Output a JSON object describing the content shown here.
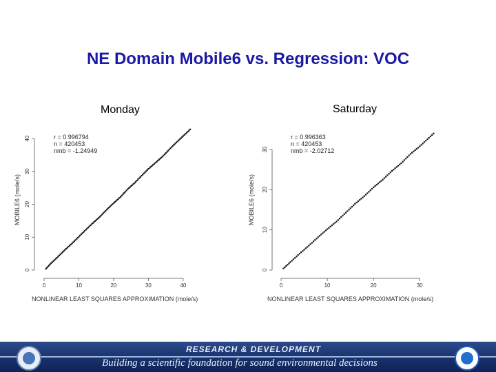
{
  "title": "NE Domain Mobile6 vs. Regression: VOC",
  "footer": {
    "top": "RESEARCH & DEVELOPMENT",
    "bottom": "Building a scientific foundation for sound environmental decisions"
  },
  "logos": {
    "left": "epa-seal",
    "right": "noaa-logo"
  },
  "chart_data": [
    {
      "type": "scatter",
      "panel_title": "Monday",
      "xlabel": "NONLINEAR LEAST SQUARES APPROXIMATION (mole/s)",
      "ylabel": "MOBILE6 (mole/s)",
      "xlim": [
        0,
        42
      ],
      "ylim": [
        0,
        44
      ],
      "xticks": [
        0,
        10,
        20,
        30,
        40
      ],
      "yticks": [
        0,
        10,
        20,
        30,
        40
      ],
      "stats": [
        "r = 0.996794",
        "n = 420453",
        "nmb = -1.24949"
      ],
      "points_description_series": [
        {
          "x": 0.5,
          "y": 0.4
        },
        {
          "x": 2,
          "y": 2.1
        },
        {
          "x": 4,
          "y": 4.1
        },
        {
          "x": 6,
          "y": 6.2
        },
        {
          "x": 8,
          "y": 8.1
        },
        {
          "x": 10,
          "y": 10.2
        },
        {
          "x": 12,
          "y": 12.3
        },
        {
          "x": 14,
          "y": 14.3
        },
        {
          "x": 16,
          "y": 16.2
        },
        {
          "x": 18,
          "y": 18.4
        },
        {
          "x": 20,
          "y": 20.4
        },
        {
          "x": 22,
          "y": 22.3
        },
        {
          "x": 24,
          "y": 24.6
        },
        {
          "x": 26,
          "y": 26.5
        },
        {
          "x": 28,
          "y": 28.7
        },
        {
          "x": 30,
          "y": 30.8
        },
        {
          "x": 34,
          "y": 34.5
        },
        {
          "x": 37,
          "y": 37.8
        },
        {
          "x": 42,
          "y": 42.8
        }
      ]
    },
    {
      "type": "scatter",
      "panel_title": "Saturday",
      "xlabel": "NONLINEAR LEAST SQUARES APPROXIMATION (mole/s)",
      "ylabel": "MOBILE6 (mole/s)",
      "xlim": [
        0,
        34
      ],
      "ylim": [
        0,
        36
      ],
      "xticks": [
        0,
        10,
        20,
        30
      ],
      "yticks": [
        0,
        10,
        20,
        30
      ],
      "stats": [
        "r = 0.996363",
        "n = 420453",
        "nmb = -2.02712"
      ],
      "points_description_series": [
        {
          "x": 0.5,
          "y": 0.4
        },
        {
          "x": 2,
          "y": 2.0
        },
        {
          "x": 4,
          "y": 4.1
        },
        {
          "x": 6,
          "y": 6.1
        },
        {
          "x": 8,
          "y": 8.2
        },
        {
          "x": 10,
          "y": 10.2
        },
        {
          "x": 12,
          "y": 12.1
        },
        {
          "x": 14,
          "y": 14.3
        },
        {
          "x": 16,
          "y": 16.5
        },
        {
          "x": 18,
          "y": 18.4
        },
        {
          "x": 20,
          "y": 20.6
        },
        {
          "x": 22,
          "y": 22.5
        },
        {
          "x": 24,
          "y": 24.7
        },
        {
          "x": 26,
          "y": 26.6
        },
        {
          "x": 28,
          "y": 28.9
        },
        {
          "x": 30,
          "y": 30.8
        },
        {
          "x": 33,
          "y": 34.0
        }
      ]
    }
  ]
}
